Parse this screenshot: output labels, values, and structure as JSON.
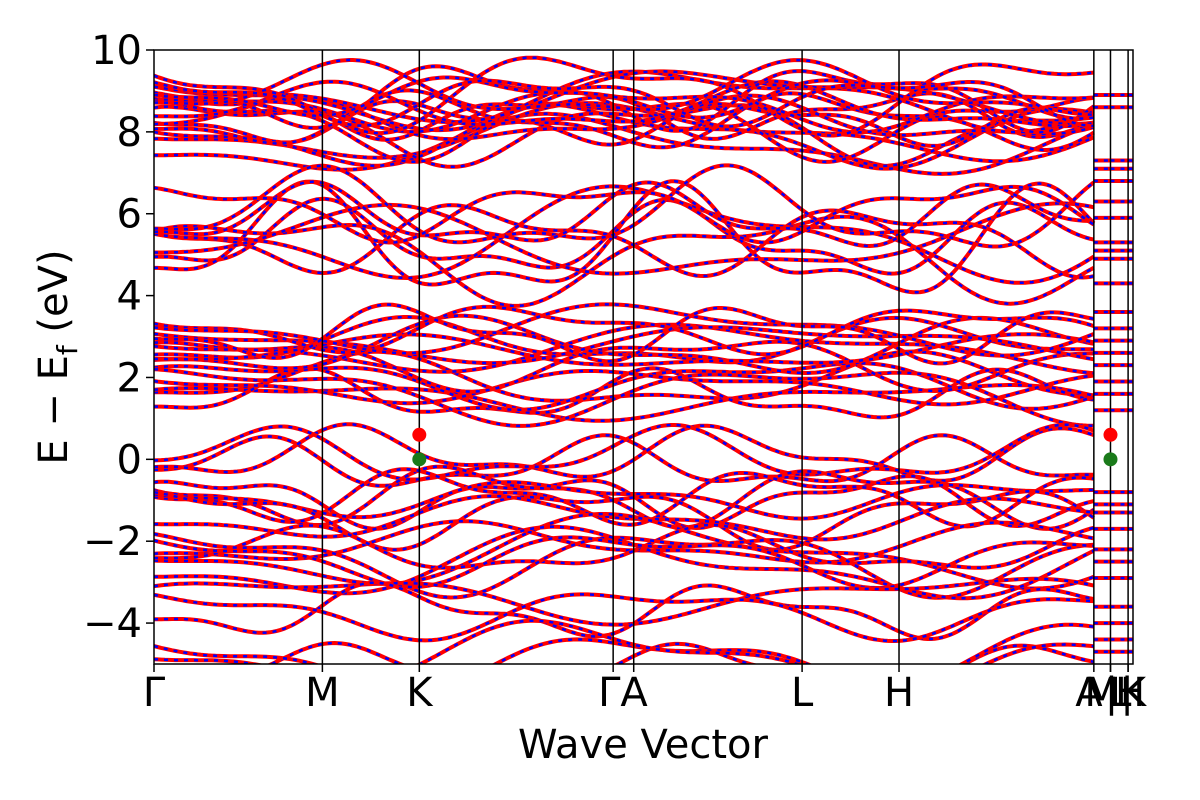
{
  "chart_data": {
    "type": "line",
    "title": "",
    "xlabel": "Wave Vector",
    "ylabel": "E − E_f (eV)",
    "ylabel_parts": {
      "main": "E − E",
      "sub": "f",
      "tail": " (eV)"
    },
    "ylim": [
      -5,
      10
    ],
    "yticks": [
      -4,
      -2,
      0,
      2,
      4,
      6,
      8,
      10
    ],
    "ytick_labels": [
      "−4",
      "−2",
      "0",
      "2",
      "4",
      "6",
      "8",
      "10"
    ],
    "xlim": [
      0,
      1
    ],
    "kpath": [
      {
        "label": "Γ",
        "x": 0.0
      },
      {
        "label": "M",
        "x": 0.172
      },
      {
        "label": "K",
        "x": 0.271
      },
      {
        "label": "Γ",
        "x": 0.469
      },
      {
        "label": "A",
        "x": 0.49
      },
      {
        "label": "L",
        "x": 0.662
      },
      {
        "label": "H",
        "x": 0.761
      },
      {
        "label": "A",
        "x": 0.96
      },
      {
        "label": "L",
        "x": 0.977
      },
      {
        "label": "M",
        "x": 0.977
      },
      {
        "label": "H",
        "x": 0.995
      },
      {
        "label": "K",
        "x": 0.995
      }
    ],
    "xtick_labels": [
      {
        "text": "Γ",
        "x": 0.0
      },
      {
        "text": "M",
        "x": 0.172
      },
      {
        "text": "K",
        "x": 0.271
      },
      {
        "text": "ΓA",
        "x": 0.479
      },
      {
        "text": "L",
        "x": 0.662
      },
      {
        "text": "H",
        "x": 0.761
      },
      {
        "text": "A",
        "x": 0.955
      },
      {
        "text": "M",
        "x": 0.968
      },
      {
        "text": "|",
        "x": 0.978
      },
      {
        "text": "L",
        "x": 0.987
      },
      {
        "text": "|",
        "x": 0.994
      },
      {
        "text": "H",
        "x": 0.997
      },
      {
        "text": "K",
        "x": 1.0
      }
    ],
    "vlines": [
      0.172,
      0.271,
      0.469,
      0.49,
      0.662,
      0.761,
      0.96,
      0.977,
      0.995
    ],
    "grid": false,
    "series_colors": {
      "spin_up": "#ff0000",
      "spin_down": "#0000ff"
    },
    "cbm": {
      "energy": 0.6,
      "points_x": [
        0.271,
        0.977
      ],
      "color": "#ff0000"
    },
    "vbm": {
      "energy": 0.0,
      "points_x": [
        0.271,
        0.977
      ],
      "color": "#1a7a1a"
    },
    "band_groups": [
      {
        "group": "conduction_high",
        "energies_at_gamma": [
          7.8,
          8.2,
          8.4,
          8.7,
          8.8,
          9.0
        ]
      },
      {
        "group": "conduction_mid",
        "energies_at_gamma": [
          5.1,
          5.3,
          6.0
        ]
      },
      {
        "group": "conduction_low",
        "energies_at_gamma": [
          1.7,
          1.9,
          2.6,
          2.8,
          3.0
        ]
      },
      {
        "group": "valence",
        "energies_at_gamma": [
          -0.1,
          -1.0,
          -1.2,
          -2.2,
          -2.4,
          -3.5,
          -4.8
        ]
      }
    ]
  }
}
